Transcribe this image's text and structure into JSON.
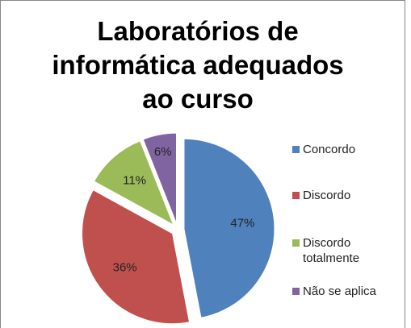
{
  "chart_data": {
    "type": "pie",
    "title": "Laboratórios de informática adequados ao curso",
    "categories": [
      "Concordo",
      "Discordo",
      "Discordo totalmente",
      "Não se aplica"
    ],
    "values": [
      47,
      36,
      11,
      6
    ],
    "value_labels": [
      "47%",
      "36%",
      "11%",
      "6%"
    ],
    "colors": [
      "#4f81bd",
      "#c0504d",
      "#9bbb59",
      "#8064a2"
    ],
    "legend": "right"
  }
}
